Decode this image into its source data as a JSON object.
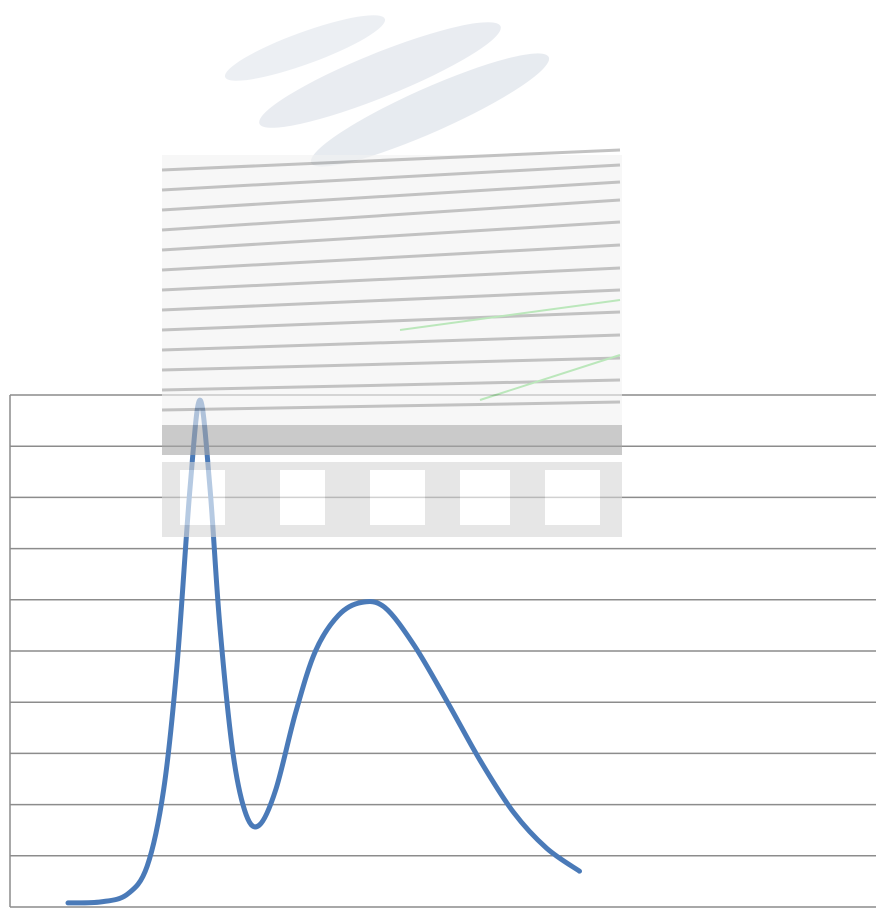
{
  "chart_data": {
    "type": "line",
    "title": "",
    "xlabel": "",
    "ylabel": "",
    "grid": true,
    "legend": "none",
    "line_color": "#4a7ab8",
    "grid_color": "#8c8c8c",
    "ylim": [
      0,
      10
    ],
    "xlim": [
      0,
      20
    ],
    "series": [
      {
        "values": [
          [
            0.0,
            0.08
          ],
          [
            1.0,
            0.1
          ],
          [
            1.8,
            0.25
          ],
          [
            2.4,
            0.8
          ],
          [
            2.9,
            2.3
          ],
          [
            3.3,
            4.7
          ],
          [
            3.7,
            8.2
          ],
          [
            4.0,
            9.9
          ],
          [
            4.3,
            8.2
          ],
          [
            4.6,
            5.5
          ],
          [
            5.0,
            3.0
          ],
          [
            5.4,
            1.8
          ],
          [
            5.8,
            1.6
          ],
          [
            6.3,
            2.3
          ],
          [
            6.9,
            3.8
          ],
          [
            7.5,
            5.0
          ],
          [
            8.2,
            5.7
          ],
          [
            8.9,
            5.95
          ],
          [
            9.6,
            5.85
          ],
          [
            10.5,
            5.1
          ],
          [
            11.5,
            4.0
          ],
          [
            12.5,
            2.85
          ],
          [
            13.5,
            1.85
          ],
          [
            14.5,
            1.15
          ],
          [
            15.5,
            0.7
          ]
        ]
      }
    ]
  },
  "logo": {
    "name": "watermark-logo"
  }
}
